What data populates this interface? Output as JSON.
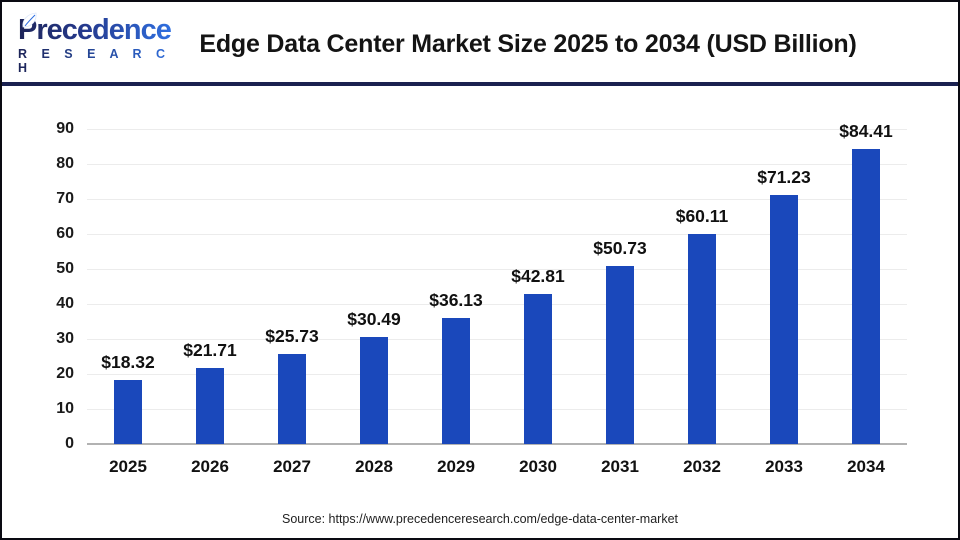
{
  "header": {
    "title": "Edge Data Center Market Size 2025 to 2034 (USD Billion)"
  },
  "logo": {
    "word": "Precedence",
    "sub": "R E S E A R C H",
    "navy": "#1d2458",
    "blue": "#2f6fe0"
  },
  "footer": {
    "source": "Source: https://www.precedenceresearch.com/edge-data-center-market"
  },
  "colors": {
    "bar": "#1a48bb",
    "gridline": "#ececec",
    "baseline": "#b2b2b2",
    "separator": "#1a2150"
  },
  "chart_data": {
    "type": "bar",
    "title": "Edge Data Center Market Size 2025 to 2034 (USD Billion)",
    "categories": [
      "2025",
      "2026",
      "2027",
      "2028",
      "2029",
      "2030",
      "2031",
      "2032",
      "2033",
      "2034"
    ],
    "values": [
      18.32,
      21.71,
      25.73,
      30.49,
      36.13,
      42.81,
      50.73,
      60.11,
      71.23,
      84.41
    ],
    "labels": [
      "$18.32",
      "$21.71",
      "$25.73",
      "$30.49",
      "$36.13",
      "$42.81",
      "$50.73",
      "$60.11",
      "$71.23",
      "$84.41"
    ],
    "xlabel": "",
    "ylabel": "",
    "ylim": [
      0,
      90
    ],
    "yticks": [
      0,
      10,
      20,
      30,
      40,
      50,
      60,
      70,
      80,
      90
    ],
    "grid": true,
    "legend": "none",
    "bar_color": "#1a48bb"
  }
}
